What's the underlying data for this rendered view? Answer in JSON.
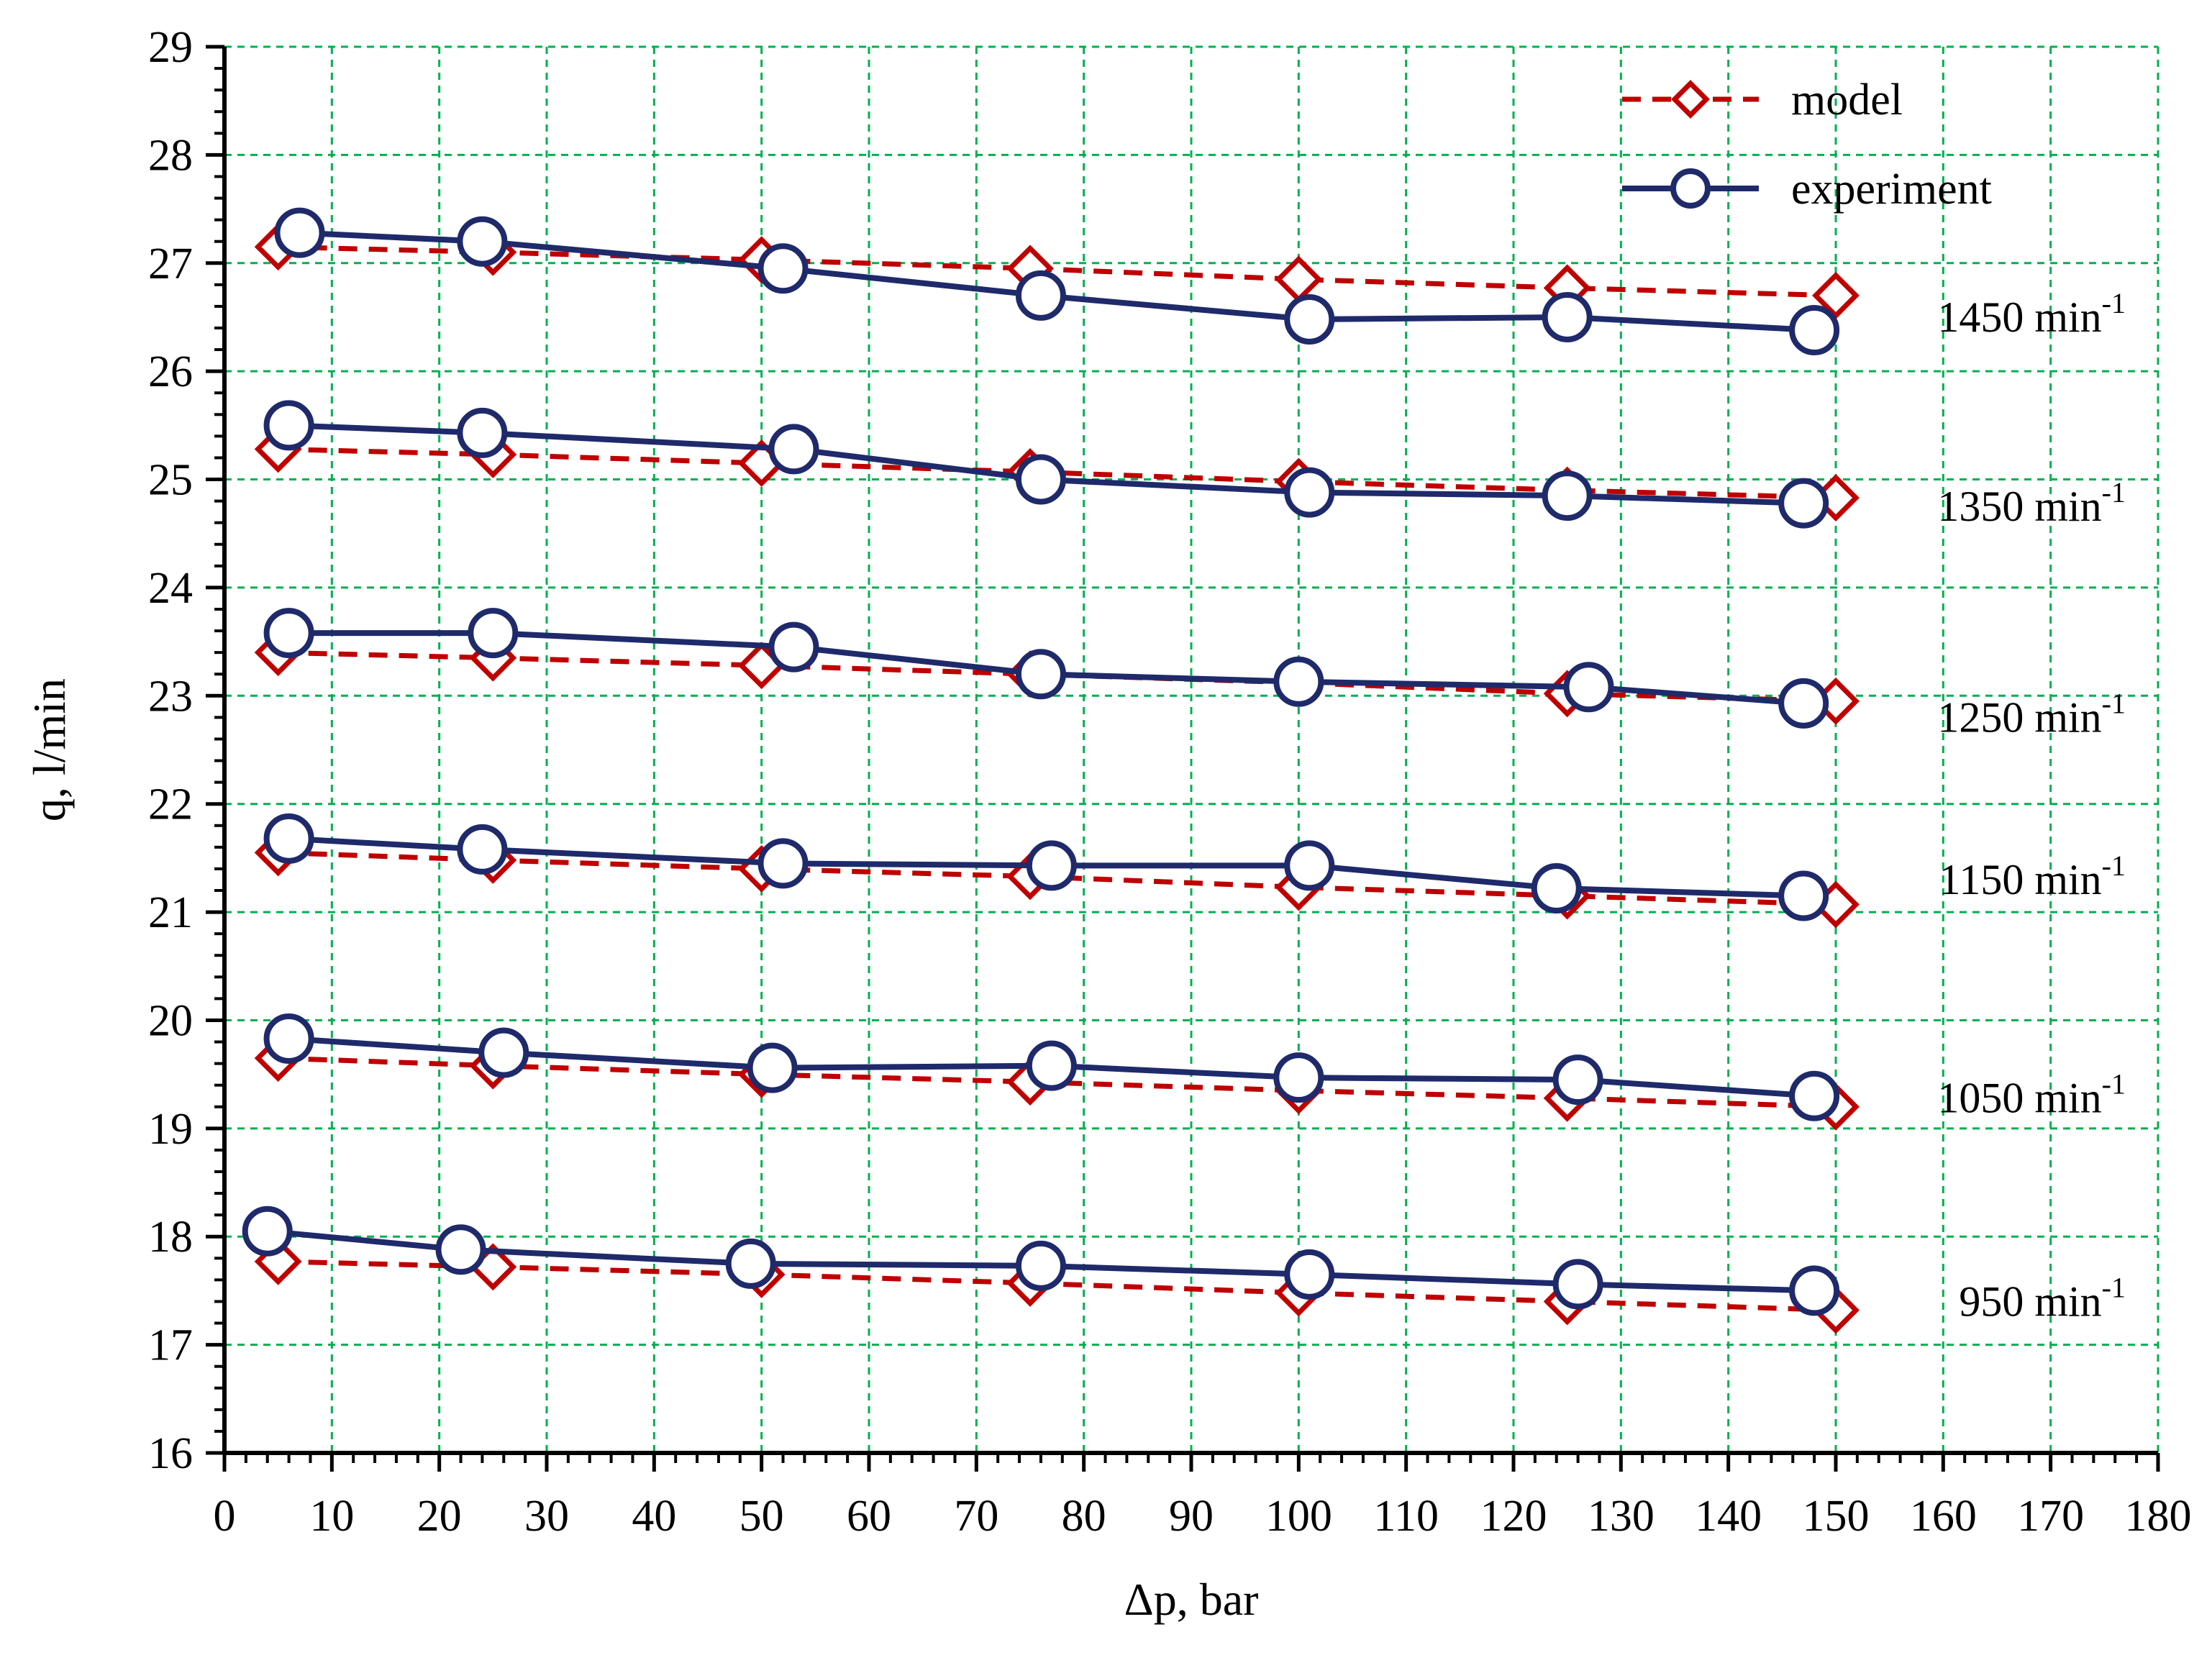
{
  "chart_data": {
    "type": "line",
    "title": "",
    "xlabel": "Δp, bar",
    "ylabel": "q, l/min",
    "xlim": [
      0,
      180
    ],
    "ylim": [
      16,
      29
    ],
    "xticks": [
      0,
      10,
      20,
      30,
      40,
      50,
      60,
      70,
      80,
      90,
      100,
      110,
      120,
      130,
      140,
      150,
      160,
      170,
      180
    ],
    "yticks": [
      16,
      17,
      18,
      19,
      20,
      21,
      22,
      23,
      24,
      25,
      26,
      27,
      28,
      29
    ],
    "grid": true,
    "legend_position": "top-right",
    "legend": [
      {
        "label": "model",
        "color": "#c00000",
        "style": "dashed",
        "marker": "diamond"
      },
      {
        "label": "experiment",
        "color": "#1f2a6b",
        "style": "solid",
        "marker": "circle"
      }
    ],
    "colors": {
      "model": "#c00000",
      "experiment": "#1f2a6b",
      "grid": "#00b050"
    },
    "groups": [
      {
        "label": "1450 min",
        "superscript": "-1",
        "label_y": 26.5,
        "model": {
          "x": [
            5,
            25,
            50,
            75,
            100,
            125,
            150
          ],
          "y": [
            27.15,
            27.1,
            27.03,
            26.95,
            26.85,
            26.77,
            26.7
          ]
        },
        "experiment": {
          "x": [
            7,
            24,
            52,
            76,
            101,
            125,
            148
          ],
          "y": [
            27.28,
            27.2,
            26.95,
            26.7,
            26.48,
            26.5,
            26.38
          ]
        }
      },
      {
        "label": "1350 min",
        "superscript": "-1",
        "label_y": 24.75,
        "model": {
          "x": [
            5,
            25,
            50,
            75,
            100,
            125,
            150
          ],
          "y": [
            25.28,
            25.23,
            25.15,
            25.07,
            24.98,
            24.9,
            24.83
          ]
        },
        "experiment": {
          "x": [
            6,
            24,
            53,
            76,
            101,
            125,
            147
          ],
          "y": [
            25.5,
            25.43,
            25.28,
            25.0,
            24.88,
            24.85,
            24.78
          ]
        }
      },
      {
        "label": "1250 min",
        "superscript": "-1",
        "label_y": 22.8,
        "model": {
          "x": [
            5,
            25,
            50,
            75,
            100,
            125,
            150
          ],
          "y": [
            23.4,
            23.35,
            23.28,
            23.2,
            23.12,
            23.02,
            22.95
          ]
        },
        "experiment": {
          "x": [
            6,
            25,
            53,
            76,
            100,
            127,
            147
          ],
          "y": [
            23.58,
            23.58,
            23.45,
            23.2,
            23.13,
            23.08,
            22.93
          ]
        }
      },
      {
        "label": "1150 min",
        "superscript": "-1",
        "label_y": 21.3,
        "model": {
          "x": [
            5,
            25,
            50,
            75,
            100,
            125,
            150
          ],
          "y": [
            21.55,
            21.48,
            21.4,
            21.33,
            21.23,
            21.15,
            21.07
          ]
        },
        "experiment": {
          "x": [
            6,
            24,
            52,
            77,
            101,
            124,
            147
          ],
          "y": [
            21.68,
            21.58,
            21.45,
            21.43,
            21.43,
            21.22,
            21.15
          ]
        }
      },
      {
        "label": "1050 min",
        "superscript": "-1",
        "label_y": 19.28,
        "model": {
          "x": [
            5,
            25,
            50,
            75,
            100,
            125,
            150
          ],
          "y": [
            19.65,
            19.58,
            19.5,
            19.43,
            19.35,
            19.28,
            19.2
          ]
        },
        "experiment": {
          "x": [
            6,
            26,
            51,
            77,
            100,
            126,
            148
          ],
          "y": [
            19.83,
            19.7,
            19.56,
            19.58,
            19.47,
            19.45,
            19.3
          ]
        }
      },
      {
        "label": "950 min",
        "superscript": "-1",
        "label_y": 17.4,
        "model": {
          "x": [
            5,
            25,
            50,
            75,
            100,
            125,
            150
          ],
          "y": [
            17.77,
            17.72,
            17.65,
            17.57,
            17.48,
            17.4,
            17.32
          ]
        },
        "experiment": {
          "x": [
            4,
            22,
            49,
            76,
            101,
            126,
            148
          ],
          "y": [
            18.05,
            17.88,
            17.75,
            17.73,
            17.65,
            17.56,
            17.5
          ]
        }
      }
    ]
  }
}
